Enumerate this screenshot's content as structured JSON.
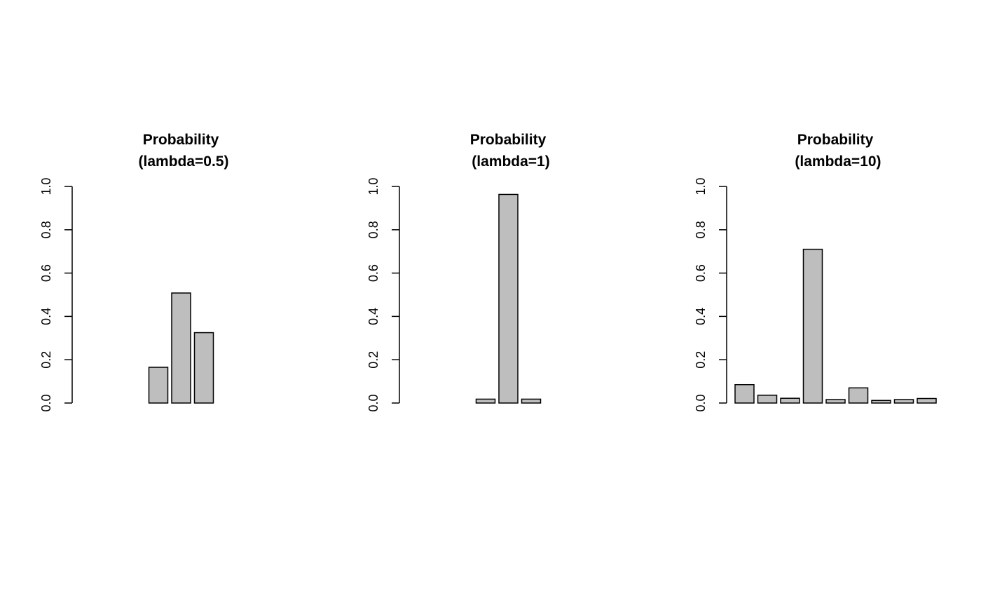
{
  "figure": {
    "background": "#ffffff",
    "bar_fill": "#bebebe",
    "bar_stroke": "#000000"
  },
  "chart_data": [
    {
      "type": "bar",
      "title": "Probability\n(lambda=0.5)",
      "title_lines": [
        "Probability",
        "(lambda=0.5)"
      ],
      "xlabel": "",
      "ylabel": "",
      "ylim": [
        0,
        1
      ],
      "yticks": [
        "0.0",
        "0.2",
        "0.4",
        "0.6",
        "0.8",
        "1.0"
      ],
      "values": [
        0.0,
        0.0,
        0.0,
        0.165,
        0.508,
        0.325,
        0.0,
        0.0,
        0.0
      ],
      "grid": false
    },
    {
      "type": "bar",
      "title": "Probability\n(lambda=1)",
      "title_lines": [
        "Probability",
        "(lambda=1)"
      ],
      "xlabel": "",
      "ylabel": "",
      "ylim": [
        0,
        1
      ],
      "yticks": [
        "0.0",
        "0.2",
        "0.4",
        "0.6",
        "0.8",
        "1.0"
      ],
      "values": [
        0.0,
        0.0,
        0.0,
        0.018,
        0.963,
        0.018,
        0.0,
        0.0,
        0.0
      ],
      "grid": false
    },
    {
      "type": "bar",
      "title": "Probability\n(lambda=10)",
      "title_lines": [
        "Probability",
        "(lambda=10)"
      ],
      "xlabel": "",
      "ylabel": "",
      "ylim": [
        0,
        1
      ],
      "yticks": [
        "0.0",
        "0.2",
        "0.4",
        "0.6",
        "0.8",
        "1.0"
      ],
      "values": [
        0.085,
        0.036,
        0.022,
        0.71,
        0.016,
        0.07,
        0.012,
        0.016,
        0.021
      ],
      "grid": false
    }
  ]
}
